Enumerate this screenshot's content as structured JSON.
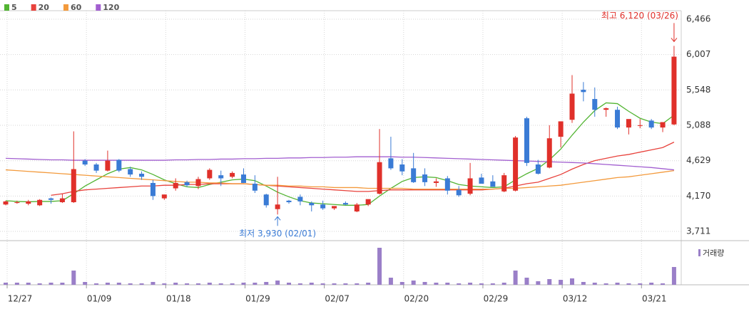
{
  "chart_data": {
    "type": "candlestick",
    "legend": [
      {
        "name": "5",
        "color": "#52b432"
      },
      {
        "name": "20",
        "color": "#e8423c"
      },
      {
        "name": "60",
        "color": "#f39a3c"
      },
      {
        "name": "120",
        "color": "#a25fd0"
      }
    ],
    "categories": [
      "12/27",
      null,
      null,
      null,
      null,
      null,
      null,
      "01/09",
      null,
      null,
      null,
      null,
      null,
      null,
      "01/18",
      null,
      null,
      null,
      null,
      null,
      null,
      "01/29",
      null,
      null,
      null,
      null,
      null,
      null,
      "02/07",
      null,
      null,
      null,
      null,
      null,
      null,
      "02/20",
      null,
      null,
      null,
      null,
      null,
      null,
      "02/29",
      null,
      null,
      null,
      null,
      null,
      null,
      "03/12",
      null,
      null,
      null,
      null,
      null,
      null,
      "03/21",
      null,
      null,
      null
    ],
    "candles": {
      "up_color": "#e0302a",
      "down_color": "#3a7bd5",
      "open": [
        4060,
        4080,
        4070,
        4050,
        4140,
        4090,
        4090,
        4630,
        4580,
        4500,
        4640,
        4520,
        4460,
        4340,
        4140,
        4270,
        4350,
        4300,
        4400,
        4440,
        4420,
        4450,
        4330,
        4190,
        4000,
        4110,
        4160,
        4080,
        4060,
        4010,
        4080,
        3970,
        4060,
        4200,
        4660,
        4580,
        4530,
        4450,
        4340,
        4400,
        4250,
        4200,
        4410,
        4360,
        4230,
        4240,
        5180,
        4580,
        4540,
        4940,
        5160,
        5550,
        5430,
        5290,
        5290,
        5060,
        5080,
        5150,
        5060,
        5100
      ],
      "high": [
        4110,
        4110,
        4120,
        4130,
        4150,
        4200,
        5010,
        4650,
        4600,
        4760,
        4650,
        4550,
        4490,
        4380,
        4190,
        4400,
        4370,
        4420,
        4530,
        4500,
        4490,
        4530,
        4440,
        4200,
        4420,
        4120,
        4190,
        4100,
        4110,
        4040,
        4100,
        4080,
        4100,
        5040,
        4940,
        4650,
        4730,
        4530,
        4400,
        4430,
        4300,
        4600,
        4460,
        4440,
        4470,
        4950,
        5200,
        4640,
        5090,
        5100,
        5740,
        5650,
        5580,
        5320,
        5330,
        5140,
        5170,
        5170,
        5120,
        6120
      ],
      "low": [
        4050,
        4070,
        4050,
        4040,
        4070,
        4080,
        4080,
        4560,
        4470,
        4490,
        4480,
        4420,
        4380,
        4120,
        4120,
        4240,
        4290,
        4260,
        4380,
        4300,
        4400,
        4340,
        4210,
        4020,
        3930,
        4070,
        4050,
        3970,
        3990,
        3990,
        4050,
        3960,
        4040,
        4190,
        4510,
        4440,
        4340,
        4300,
        4290,
        4190,
        4160,
        4180,
        4340,
        4290,
        4220,
        4230,
        4560,
        4450,
        4530,
        4800,
        5120,
        5400,
        5200,
        5200,
        5040,
        4970,
        5050,
        5040,
        5000,
        5090
      ],
      "close": [
        4100,
        4090,
        4100,
        4120,
        4120,
        4140,
        4520,
        4580,
        4500,
        4630,
        4500,
        4450,
        4420,
        4170,
        4190,
        4340,
        4310,
        4390,
        4510,
        4400,
        4470,
        4340,
        4240,
        4050,
        4060,
        4090,
        4100,
        4050,
        4010,
        4040,
        4060,
        4060,
        4130,
        4610,
        4530,
        4490,
        4350,
        4350,
        4360,
        4240,
        4180,
        4400,
        4330,
        4290,
        4440,
        4930,
        4600,
        4460,
        4920,
        5140,
        5500,
        5520,
        5290,
        5310,
        5060,
        5170,
        5090,
        5060,
        5130,
        5980
      ]
    },
    "series": [
      {
        "name": "5",
        "color": "#52b432",
        "values": [
          4110,
          4100,
          4095,
          4100,
          4100,
          4110,
          4200,
          4300,
          4380,
          4460,
          4520,
          4540,
          4510,
          4450,
          4380,
          4330,
          4290,
          4280,
          4320,
          4350,
          4380,
          4390,
          4370,
          4300,
          4220,
          4160,
          4110,
          4080,
          4070,
          4060,
          4050,
          4050,
          4060,
          4170,
          4270,
          4360,
          4410,
          4420,
          4410,
          4370,
          4320,
          4300,
          4290,
          4280,
          4290,
          4380,
          4460,
          4530,
          4640,
          4780,
          4960,
          5130,
          5280,
          5380,
          5370,
          5270,
          5180,
          5130,
          5110,
          5220
        ]
      },
      {
        "name": "20",
        "color": "#e8423c",
        "values": [
          null,
          null,
          null,
          null,
          4180,
          4200,
          4230,
          4250,
          4260,
          4270,
          4280,
          4290,
          4300,
          4300,
          4310,
          4310,
          4320,
          4320,
          4330,
          4330,
          4330,
          4330,
          4320,
          4310,
          4300,
          4290,
          4280,
          4270,
          4260,
          4250,
          4240,
          4230,
          4230,
          4240,
          4250,
          4250,
          4250,
          4250,
          4250,
          4250,
          4250,
          4250,
          4250,
          4260,
          4270,
          4300,
          4330,
          4350,
          4400,
          4450,
          4520,
          4580,
          4630,
          4660,
          4690,
          4710,
          4740,
          4770,
          4800,
          4870
        ]
      },
      {
        "name": "60",
        "color": "#f39a3c",
        "values": [
          4510,
          4500,
          4490,
          4480,
          4470,
          4460,
          4450,
          4440,
          4430,
          4420,
          4410,
          4400,
          4390,
          4380,
          4370,
          4360,
          4350,
          4350,
          4340,
          4340,
          4330,
          4330,
          4320,
          4310,
          4310,
          4300,
          4300,
          4290,
          4290,
          4280,
          4280,
          4280,
          4270,
          4270,
          4270,
          4270,
          4260,
          4260,
          4260,
          4260,
          4260,
          4260,
          4260,
          4260,
          4270,
          4270,
          4280,
          4290,
          4300,
          4310,
          4330,
          4350,
          4370,
          4390,
          4410,
          4420,
          4440,
          4460,
          4480,
          4500
        ]
      },
      {
        "name": "120",
        "color": "#a25fd0",
        "values": [
          4660,
          4655,
          4650,
          4645,
          4640,
          4640,
          4635,
          4635,
          4635,
          4635,
          4635,
          4635,
          4635,
          4635,
          4635,
          4640,
          4640,
          4645,
          4645,
          4650,
          4650,
          4655,
          4655,
          4660,
          4660,
          4665,
          4665,
          4670,
          4670,
          4675,
          4675,
          4680,
          4680,
          4680,
          4680,
          4675,
          4675,
          4670,
          4665,
          4660,
          4655,
          4650,
          4645,
          4640,
          4635,
          4630,
          4625,
          4620,
          4615,
          4610,
          4605,
          4600,
          4590,
          4580,
          4570,
          4560,
          4550,
          4540,
          4525,
          4510
        ]
      }
    ],
    "ylim": [
      3600,
      6577
    ],
    "yticks": [
      {
        "value": 3711,
        "label": "3,711"
      },
      {
        "value": 4170,
        "label": "4,170"
      },
      {
        "value": 4629,
        "label": "4,629"
      },
      {
        "value": 5088,
        "label": "5,088"
      },
      {
        "value": 5548,
        "label": "5,548"
      },
      {
        "value": 6007,
        "label": "6,007"
      },
      {
        "value": 6466,
        "label": "6,466"
      }
    ],
    "grid": true,
    "high_annotation": {
      "text": "최고 6,120 (03/26)",
      "color": "#e0302a"
    },
    "low_annotation": {
      "text": "최저 3,930 (02/01)",
      "color": "#3a7bd5"
    },
    "volume": {
      "label": "거래량",
      "color": "#9a7fc8",
      "ylim": [
        0,
        57
      ],
      "values": [
        3,
        3,
        3,
        2,
        3,
        3,
        20,
        4,
        2,
        3,
        3,
        2,
        2,
        4,
        2,
        3,
        2,
        2,
        3,
        2,
        2,
        3,
        3,
        4,
        6,
        3,
        2,
        3,
        2,
        2,
        2,
        2,
        3,
        52,
        10,
        4,
        6,
        4,
        3,
        3,
        2,
        3,
        2,
        2,
        3,
        20,
        10,
        5,
        8,
        7,
        9,
        4,
        3,
        2,
        3,
        2,
        2,
        3,
        2,
        25
      ]
    }
  }
}
